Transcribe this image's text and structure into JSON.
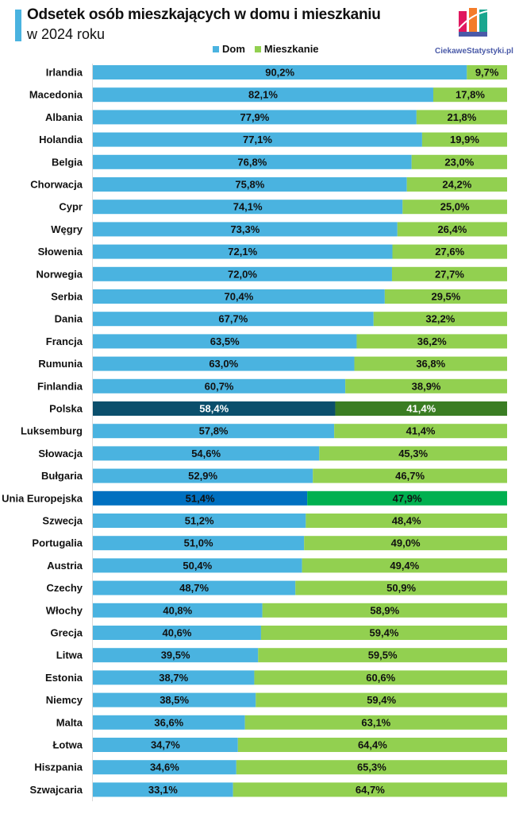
{
  "chart_data": {
    "type": "bar",
    "orientation": "horizontal",
    "stacking": "percent",
    "title": "Odsetek osób mieszkających w domu i mieszkaniu",
    "subtitle": "w 2024 roku",
    "xlim": [
      0,
      100
    ],
    "grid": false,
    "legend_position": "top",
    "categories": [
      "Irlandia",
      "Macedonia",
      "Albania",
      "Holandia",
      "Belgia",
      "Chorwacja",
      "Cypr",
      "Węgry",
      "Słowenia",
      "Norwegia",
      "Serbia",
      "Dania",
      "Francja",
      "Rumunia",
      "Finlandia",
      "Polska",
      "Luksemburg",
      "Słowacja",
      "Bułgaria",
      "Unia Europejska",
      "Szwecja",
      "Portugalia",
      "Austria",
      "Czechy",
      "Włochy",
      "Grecja",
      "Litwa",
      "Estonia",
      "Niemcy",
      "Malta",
      "Łotwa",
      "Hiszpania",
      "Szwajcaria"
    ],
    "series": [
      {
        "name": "Dom",
        "color": "#4ab3e0",
        "values": [
          90.2,
          82.1,
          77.9,
          77.1,
          76.8,
          75.8,
          74.1,
          73.3,
          72.1,
          72.0,
          70.4,
          67.7,
          63.5,
          63.0,
          60.7,
          58.4,
          57.8,
          54.6,
          52.9,
          51.4,
          51.2,
          51.0,
          50.4,
          48.7,
          40.8,
          40.6,
          39.5,
          38.7,
          38.5,
          36.6,
          34.7,
          34.6,
          33.1
        ],
        "labels": [
          "90,2%",
          "82,1%",
          "77,9%",
          "77,1%",
          "76,8%",
          "75,8%",
          "74,1%",
          "73,3%",
          "72,1%",
          "72,0%",
          "70,4%",
          "67,7%",
          "63,5%",
          "63,0%",
          "60,7%",
          "58,4%",
          "57,8%",
          "54,6%",
          "52,9%",
          "51,4%",
          "51,2%",
          "51,0%",
          "50,4%",
          "48,7%",
          "40,8%",
          "40,6%",
          "39,5%",
          "38,7%",
          "38,5%",
          "36,6%",
          "34,7%",
          "34,6%",
          "33,1%"
        ]
      },
      {
        "name": "Mieszkanie",
        "color": "#92d050",
        "values": [
          9.7,
          17.8,
          21.8,
          19.9,
          23.0,
          24.2,
          25.0,
          26.4,
          27.6,
          27.7,
          29.5,
          32.2,
          36.2,
          36.8,
          38.9,
          41.4,
          41.4,
          45.3,
          46.7,
          47.9,
          48.4,
          49.0,
          49.4,
          50.9,
          58.9,
          59.4,
          59.5,
          60.6,
          59.4,
          63.1,
          64.4,
          65.3,
          64.7
        ],
        "labels": [
          "9,7%",
          "17,8%",
          "21,8%",
          "19,9%",
          "23,0%",
          "24,2%",
          "25,0%",
          "26,4%",
          "27,6%",
          "27,7%",
          "29,5%",
          "32,2%",
          "36,2%",
          "36,8%",
          "38,9%",
          "41,4%",
          "41,4%",
          "45,3%",
          "46,7%",
          "47,9%",
          "48,4%",
          "49,0%",
          "49,4%",
          "50,9%",
          "58,9%",
          "59,4%",
          "59,5%",
          "60,6%",
          "59,4%",
          "63,1%",
          "64,4%",
          "65,3%",
          "64,7%"
        ]
      }
    ],
    "highlights": {
      "Polska": {
        "Dom": "#0b4f6c",
        "Mieszkanie": "#3a7d23",
        "label_color": "#ffffff"
      },
      "Unia Europejska": {
        "Dom": "#0070c0",
        "Mieszkanie": "#00b050",
        "label_color": "#111111"
      }
    }
  },
  "logo": {
    "text": "CiekaweStatystyki.pl"
  }
}
